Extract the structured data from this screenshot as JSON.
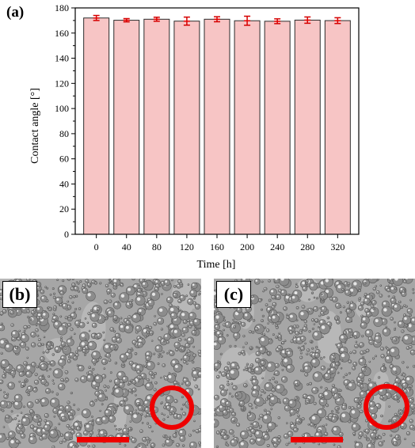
{
  "panel_a": {
    "label": "(a)"
  },
  "panel_b": {
    "label": "(b)"
  },
  "panel_c": {
    "label": "(c)"
  },
  "colors": {
    "bar_fill": "#f7c5c5",
    "bar_stroke": "#2b2b2b",
    "error_bar": "#d60000",
    "marker": "#e60000"
  },
  "chart_data": {
    "type": "bar",
    "title": "",
    "xlabel": "Time [h]",
    "ylabel": "Contact angle [°]",
    "categories": [
      "0",
      "40",
      "80",
      "120",
      "160",
      "200",
      "240",
      "280",
      "320"
    ],
    "values": [
      172.0,
      170.2,
      171.0,
      169.5,
      171.0,
      169.8,
      169.4,
      170.3,
      169.9
    ],
    "errors": [
      2.0,
      1.3,
      1.6,
      3.2,
      2.0,
      3.6,
      1.9,
      2.5,
      2.3
    ],
    "ylim": [
      0,
      180
    ],
    "yticks": [
      "0",
      "20",
      "40",
      "60",
      "80",
      "100",
      "120",
      "140",
      "160",
      "180"
    ],
    "grid": false,
    "legend": "none"
  }
}
